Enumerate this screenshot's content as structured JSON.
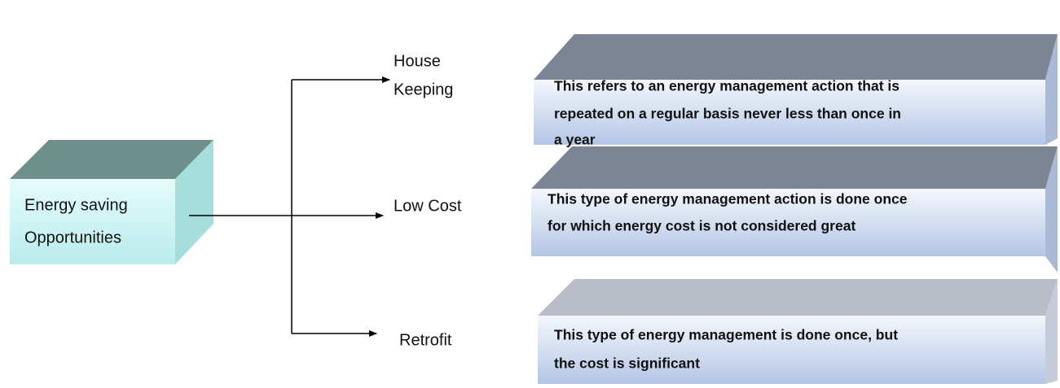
{
  "source": {
    "label": [
      "Energy saving",
      "Opportunities"
    ]
  },
  "branches": [
    {
      "label": [
        "House",
        "Keeping"
      ],
      "description": [
        "This refers to an energy management action that is",
        "repeated on a regular basis never less than once in",
        "a year"
      ]
    },
    {
      "label": [
        "Low Cost"
      ],
      "description": [
        "This type of energy management action is done once",
        "for which energy cost is not considered great"
      ]
    },
    {
      "label": [
        "Retrofit"
      ],
      "description": [
        "This type of energy management is done once, but",
        "the cost is significant"
      ]
    }
  ]
}
